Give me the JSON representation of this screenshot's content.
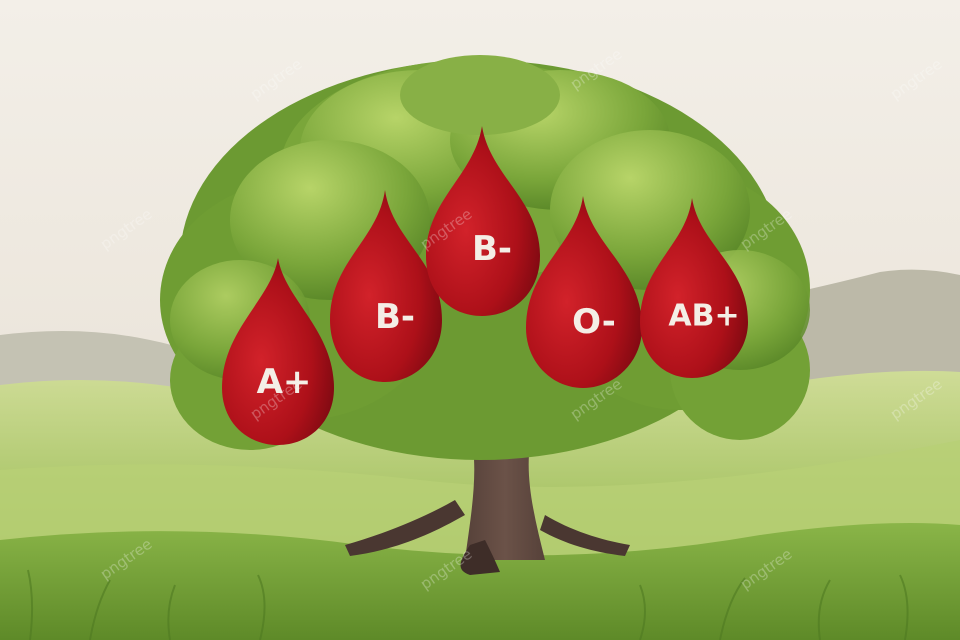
{
  "scene": {
    "drops": [
      {
        "label": "A+"
      },
      {
        "label": "B-"
      },
      {
        "label": "B-"
      },
      {
        "label": "O-"
      },
      {
        "label": "AB+"
      }
    ],
    "watermark": "pngtree",
    "colors": {
      "sky_top": "#f1ece4",
      "sky_bottom": "#e8e2d6",
      "hill_far": "#b9b7a6",
      "hill_mid": "#c7cda3",
      "grass_light": "#c9d98a",
      "grass_dark": "#6e9a2f",
      "foliage": "#6f9d33",
      "foliage_light": "#a9cb5b",
      "trunk": "#4d3a33",
      "drop": "#b3121b",
      "drop_dark": "#7d0a10",
      "drop_text": "#f4eee6"
    }
  }
}
